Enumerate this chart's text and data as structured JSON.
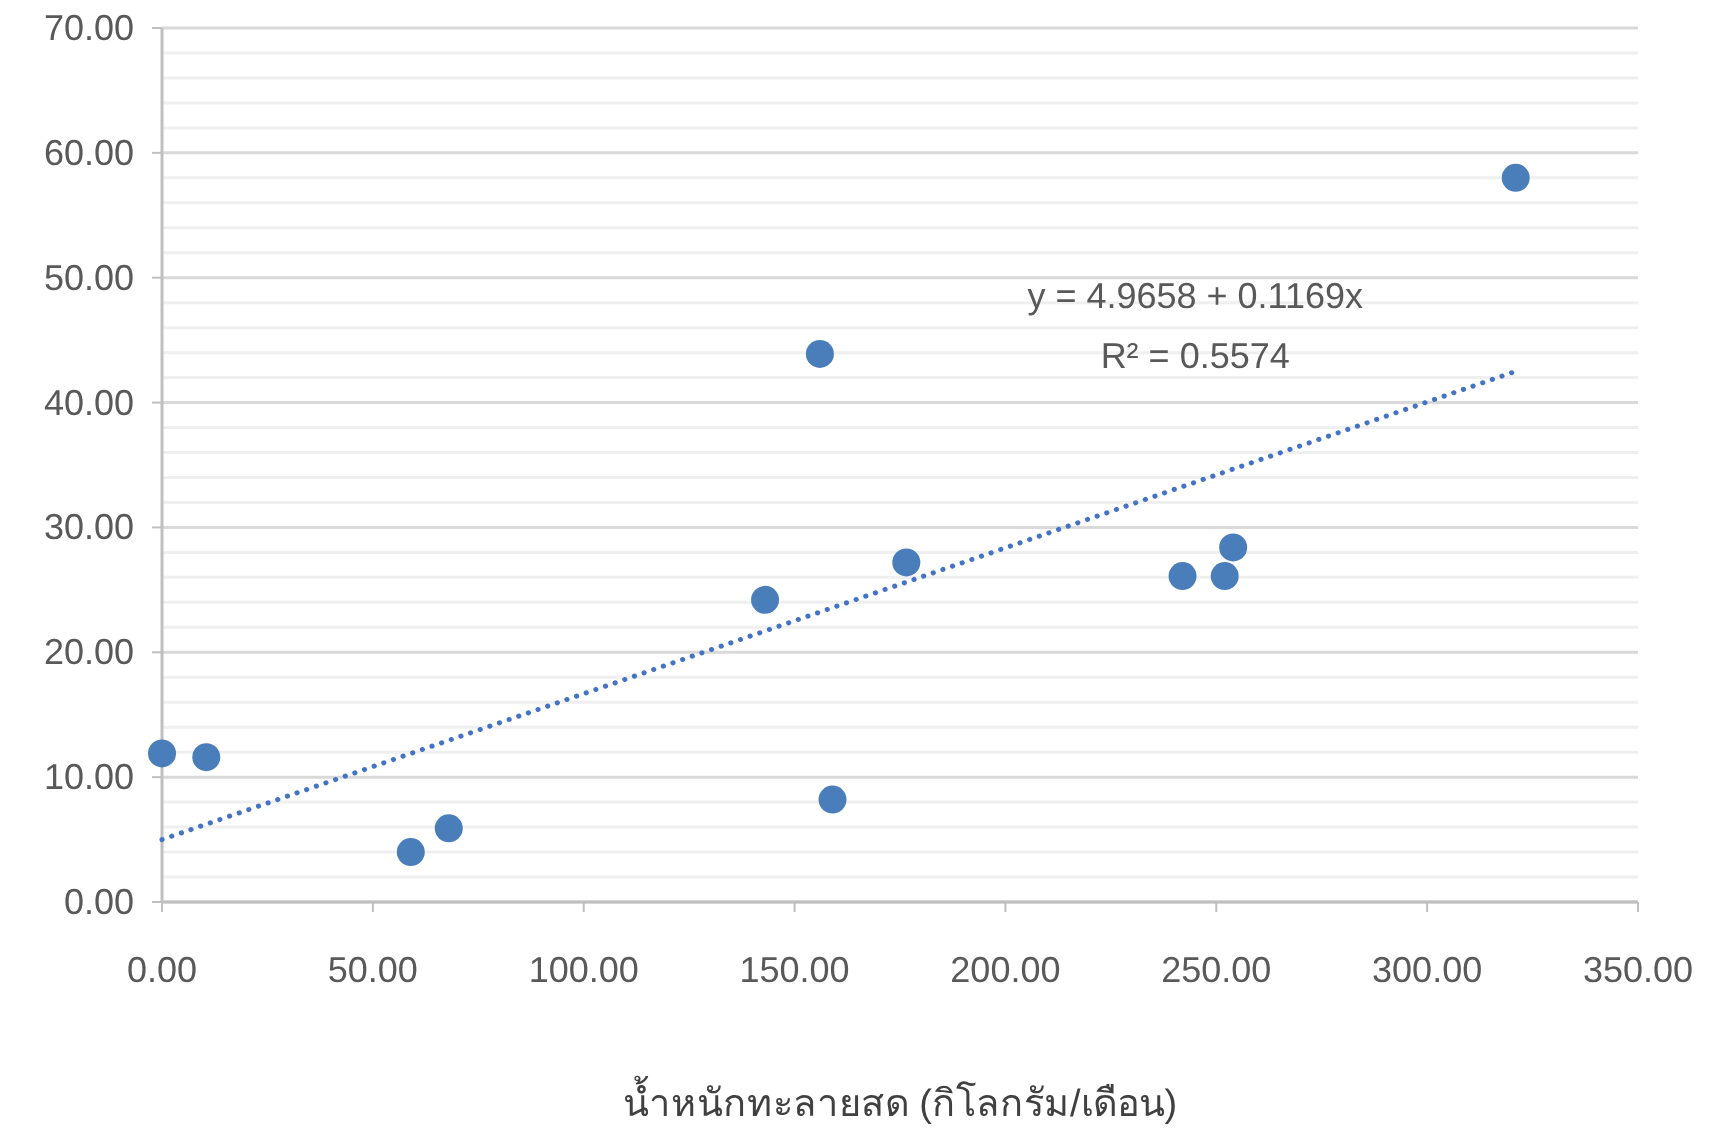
{
  "chart_data": {
    "type": "scatter",
    "xlabel": "น้ำหนักทะลายสด (กิโลกรัม/เดือน)",
    "xlim": [
      0,
      350
    ],
    "xticks": [
      {
        "value": 0,
        "label": "0.00"
      },
      {
        "value": 50,
        "label": "50.00"
      },
      {
        "value": 100,
        "label": "100.00"
      },
      {
        "value": 150,
        "label": "150.00"
      },
      {
        "value": 200,
        "label": "200.00"
      },
      {
        "value": 250,
        "label": "250.00"
      },
      {
        "value": 300,
        "label": "300.00"
      },
      {
        "value": 350,
        "label": "350.00"
      }
    ],
    "ylim": [
      0,
      70
    ],
    "yticks": [
      {
        "value": 0,
        "label": "0.00"
      },
      {
        "value": 2,
        "label": null
      },
      {
        "value": 4,
        "label": null
      },
      {
        "value": 6,
        "label": null
      },
      {
        "value": 8,
        "label": null
      },
      {
        "value": 10,
        "label": "10.00"
      },
      {
        "value": 12,
        "label": null
      },
      {
        "value": 14,
        "label": null
      },
      {
        "value": 16,
        "label": null
      },
      {
        "value": 18,
        "label": null
      },
      {
        "value": 20,
        "label": "20.00"
      },
      {
        "value": 22,
        "label": null
      },
      {
        "value": 24,
        "label": null
      },
      {
        "value": 26,
        "label": null
      },
      {
        "value": 28,
        "label": null
      },
      {
        "value": 30,
        "label": "30.00"
      },
      {
        "value": 32,
        "label": null
      },
      {
        "value": 34,
        "label": null
      },
      {
        "value": 36,
        "label": null
      },
      {
        "value": 38,
        "label": null
      },
      {
        "value": 40,
        "label": "40.00"
      },
      {
        "value": 42,
        "label": null
      },
      {
        "value": 44,
        "label": null
      },
      {
        "value": 46,
        "label": null
      },
      {
        "value": 48,
        "label": null
      },
      {
        "value": 50,
        "label": "50.00"
      },
      {
        "value": 52,
        "label": null
      },
      {
        "value": 54,
        "label": null
      },
      {
        "value": 56,
        "label": null
      },
      {
        "value": 58,
        "label": null
      },
      {
        "value": 60,
        "label": "60.00"
      },
      {
        "value": 62,
        "label": null
      },
      {
        "value": 64,
        "label": null
      },
      {
        "value": 66,
        "label": null
      },
      {
        "value": 68,
        "label": null
      },
      {
        "value": 70,
        "label": "70.00"
      }
    ],
    "grid": "y",
    "marker": "circle",
    "series": [
      {
        "color": "#4a7ebb",
        "x": [
          0,
          10.5,
          59,
          68,
          143,
          156,
          159,
          176.5,
          242,
          252,
          254,
          321
        ],
        "values": [
          11.9,
          11.6,
          4.0,
          5.9,
          24.2,
          43.9,
          8.2,
          27.2,
          26.1,
          26.1,
          28.4,
          58.0
        ]
      },
      {
        "type": "line",
        "color": "#4472c4",
        "line_style": "dotted",
        "marker": "none",
        "x": [
          0,
          321
        ],
        "values": [
          5.0,
          42.5
        ]
      }
    ],
    "annotations": [
      "y = 4.9658 + 0.1169x",
      "R² = 0.5574"
    ]
  }
}
